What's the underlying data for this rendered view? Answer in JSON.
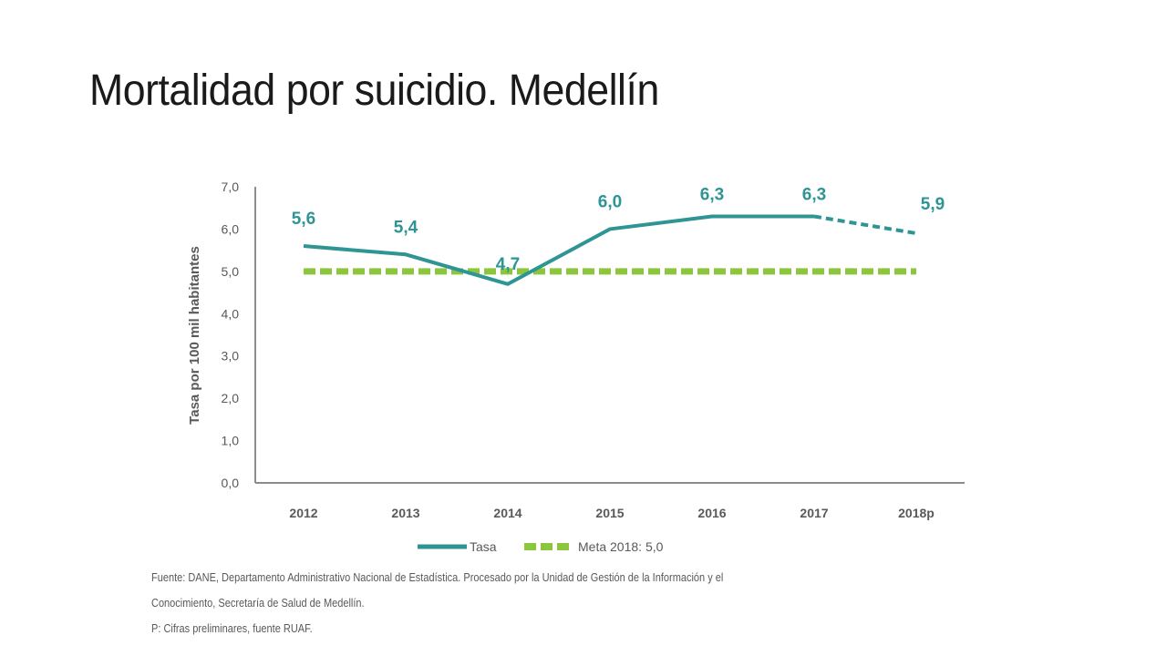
{
  "slide": {
    "title": "Mortalidad por suicidio. Medellín"
  },
  "chart_data": {
    "type": "line",
    "title": "",
    "xlabel": "",
    "ylabel": "Tasa por 100 mil habitantes",
    "categories": [
      "2012",
      "2013",
      "2014",
      "2015",
      "2016",
      "2017",
      "2018p"
    ],
    "ylim": [
      0,
      7
    ],
    "yticks": [
      "0,0",
      "1,0",
      "2,0",
      "3,0",
      "4,0",
      "5,0",
      "6,0",
      "7,0"
    ],
    "grid": false,
    "series": [
      {
        "name": "Tasa",
        "values": [
          5.6,
          5.4,
          4.7,
          6.0,
          6.3,
          6.3,
          5.9
        ],
        "labels": [
          "5,6",
          "5,4",
          "4,7",
          "6,0",
          "6,3",
          "6,3",
          "5,9"
        ],
        "color": "#2e9494",
        "style": "solid",
        "dashed_from_index": 5
      },
      {
        "name": "Meta 2018: 5,0",
        "values": [
          5.0,
          5.0,
          5.0,
          5.0,
          5.0,
          5.0,
          5.0
        ],
        "color": "#8cc63f",
        "style": "dashed"
      }
    ],
    "legend": {
      "position": "bottom-center",
      "entries": [
        "Tasa",
        "Meta 2018: 5,0"
      ]
    }
  },
  "footnotes": {
    "line1": "Fuente: DANE, Departamento Administrativo Nacional de Estadística. Procesado por la Unidad de Gestión de la Información y el",
    "line2": "Conocimiento, Secretaría de Salud de Medellín.",
    "line3": "P: Cifras preliminares, fuente RUAF."
  }
}
